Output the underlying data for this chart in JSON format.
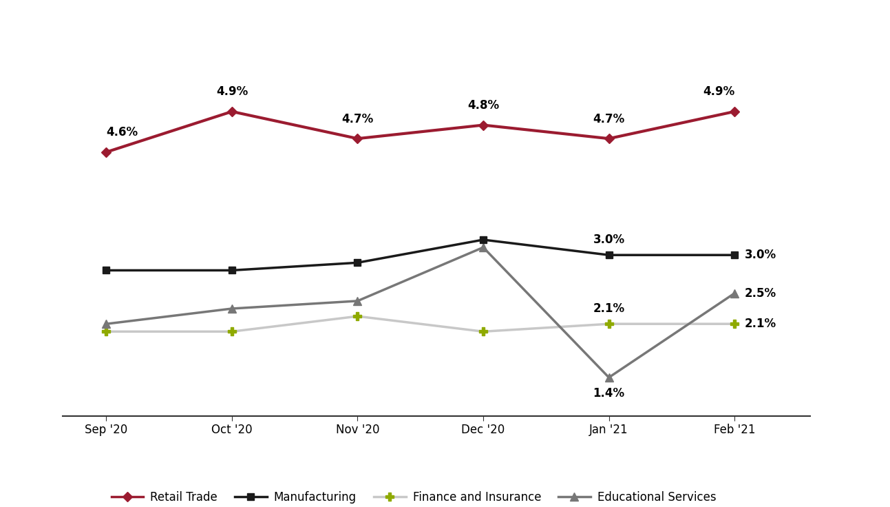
{
  "months": [
    "Sep '20",
    "Oct '20",
    "Nov '20",
    "Dec '20",
    "Jan '21",
    "Feb '21"
  ],
  "retail_trade": [
    4.6,
    4.9,
    4.7,
    4.8,
    4.7,
    4.9
  ],
  "manufacturing": [
    2.8,
    2.8,
    2.9,
    3.2,
    3.0,
    3.0
  ],
  "finance_insurance": [
    2.0,
    2.0,
    2.2,
    2.0,
    2.1,
    2.1
  ],
  "educational_services": [
    2.1,
    2.3,
    2.4,
    3.1,
    1.4,
    2.5
  ],
  "retail_color": "#9B1B30",
  "manufacturing_color": "#1a1a1a",
  "finance_line_color": "#c8c8c8",
  "finance_marker_color": "#8faa00",
  "education_color": "#777777",
  "annotation_color": "#000000",
  "label_fontsize": 12,
  "tick_fontsize": 12,
  "legend_fontsize": 12,
  "line_width": 2.5,
  "figsize": [
    12.93,
    7.36
  ],
  "dpi": 100,
  "labels": {
    "retail_trade": "Retail Trade",
    "manufacturing": "Manufacturing",
    "finance_insurance": "Finance and Insurance",
    "educational_services": "Educational Services"
  }
}
